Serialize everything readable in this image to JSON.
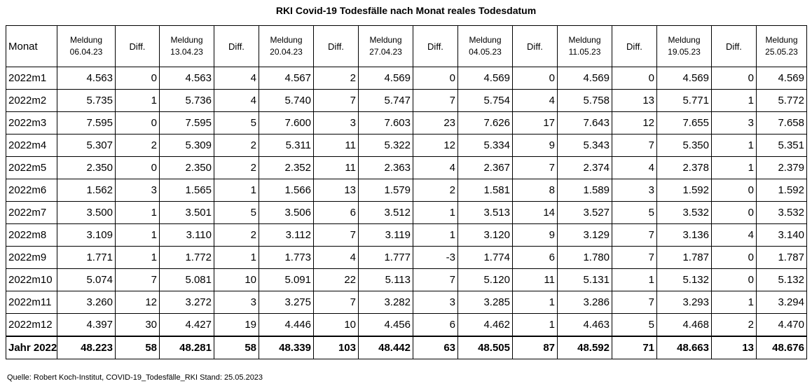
{
  "title": "RKI Covid-19 Todesfälle nach Monat reales Todesdatum",
  "header": {
    "month": "Monat",
    "diff": "Diff.",
    "meldung_label": "Meldung",
    "dates": [
      "06.04.23",
      "13.04.23",
      "20.04.23",
      "27.04.23",
      "04.05.23",
      "11.05.23",
      "19.05.23",
      "25.05.23"
    ]
  },
  "rows": [
    {
      "month": "2022m1",
      "cells": [
        "4.563",
        "0",
        "4.563",
        "4",
        "4.567",
        "2",
        "4.569",
        "0",
        "4.569",
        "0",
        "4.569",
        "0",
        "4.569",
        "0",
        "4.569"
      ]
    },
    {
      "month": "2022m2",
      "cells": [
        "5.735",
        "1",
        "5.736",
        "4",
        "5.740",
        "7",
        "5.747",
        "7",
        "5.754",
        "4",
        "5.758",
        "13",
        "5.771",
        "1",
        "5.772"
      ]
    },
    {
      "month": "2022m3",
      "cells": [
        "7.595",
        "0",
        "7.595",
        "5",
        "7.600",
        "3",
        "7.603",
        "23",
        "7.626",
        "17",
        "7.643",
        "12",
        "7.655",
        "3",
        "7.658"
      ]
    },
    {
      "month": "2022m4",
      "cells": [
        "5.307",
        "2",
        "5.309",
        "2",
        "5.311",
        "11",
        "5.322",
        "12",
        "5.334",
        "9",
        "5.343",
        "7",
        "5.350",
        "1",
        "5.351"
      ]
    },
    {
      "month": "2022m5",
      "cells": [
        "2.350",
        "0",
        "2.350",
        "2",
        "2.352",
        "11",
        "2.363",
        "4",
        "2.367",
        "7",
        "2.374",
        "4",
        "2.378",
        "1",
        "2.379"
      ]
    },
    {
      "month": "2022m6",
      "cells": [
        "1.562",
        "3",
        "1.565",
        "1",
        "1.566",
        "13",
        "1.579",
        "2",
        "1.581",
        "8",
        "1.589",
        "3",
        "1.592",
        "0",
        "1.592"
      ]
    },
    {
      "month": "2022m7",
      "cells": [
        "3.500",
        "1",
        "3.501",
        "5",
        "3.506",
        "6",
        "3.512",
        "1",
        "3.513",
        "14",
        "3.527",
        "5",
        "3.532",
        "0",
        "3.532"
      ]
    },
    {
      "month": "2022m8",
      "cells": [
        "3.109",
        "1",
        "3.110",
        "2",
        "3.112",
        "7",
        "3.119",
        "1",
        "3.120",
        "9",
        "3.129",
        "7",
        "3.136",
        "4",
        "3.140"
      ]
    },
    {
      "month": "2022m9",
      "cells": [
        "1.771",
        "1",
        "1.772",
        "1",
        "1.773",
        "4",
        "1.777",
        "-3",
        "1.774",
        "6",
        "1.780",
        "7",
        "1.787",
        "0",
        "1.787"
      ]
    },
    {
      "month": "2022m10",
      "cells": [
        "5.074",
        "7",
        "5.081",
        "10",
        "5.091",
        "22",
        "5.113",
        "7",
        "5.120",
        "11",
        "5.131",
        "1",
        "5.132",
        "0",
        "5.132"
      ]
    },
    {
      "month": "2022m11",
      "cells": [
        "3.260",
        "12",
        "3.272",
        "3",
        "3.275",
        "7",
        "3.282",
        "3",
        "3.285",
        "1",
        "3.286",
        "7",
        "3.293",
        "1",
        "3.294"
      ]
    },
    {
      "month": "2022m12",
      "cells": [
        "4.397",
        "30",
        "4.427",
        "19",
        "4.446",
        "10",
        "4.456",
        "6",
        "4.462",
        "1",
        "4.463",
        "5",
        "4.468",
        "2",
        "4.470"
      ]
    }
  ],
  "total": {
    "month": "Jahr 2022",
    "cells": [
      "48.223",
      "58",
      "48.281",
      "58",
      "48.339",
      "103",
      "48.442",
      "63",
      "48.505",
      "87",
      "48.592",
      "71",
      "48.663",
      "13",
      "48.676"
    ]
  },
  "source": "Quelle: Robert Koch-Institut, COVID-19_Todesfälle_RKI Stand: 25.05.2023"
}
